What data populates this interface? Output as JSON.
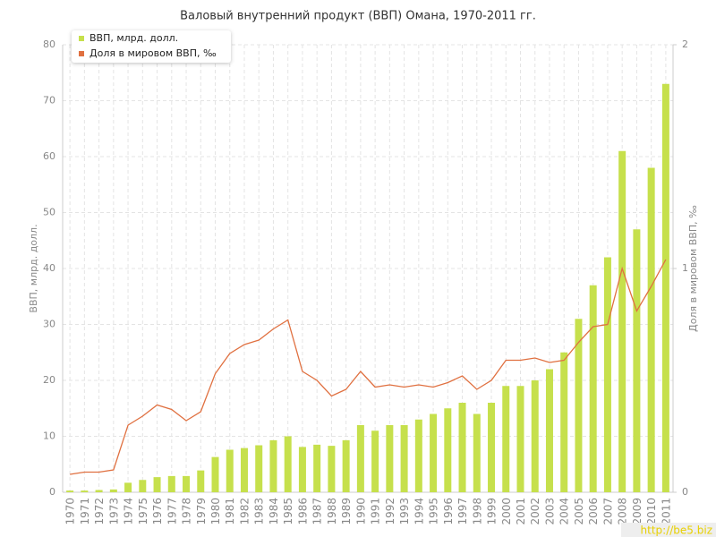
{
  "chart_data": {
    "type": "bar-line",
    "title": "Валовый внутренний продукт (ВВП) Омана, 1970-2011 гг.",
    "ylabel": "ВВП, млрд. долл.",
    "y2label": "Доля в мировом ВВП, ‰",
    "categories": [
      "1970",
      "1971",
      "1972",
      "1973",
      "1974",
      "1975",
      "1976",
      "1977",
      "1978",
      "1979",
      "1980",
      "1981",
      "1982",
      "1983",
      "1984",
      "1985",
      "1986",
      "1987",
      "1988",
      "1989",
      "1990",
      "1991",
      "1992",
      "1993",
      "1994",
      "1995",
      "1996",
      "1997",
      "1998",
      "1999",
      "2000",
      "2001",
      "2002",
      "2003",
      "2004",
      "2005",
      "2006",
      "2007",
      "2008",
      "2009",
      "2010",
      "2011"
    ],
    "series": [
      {
        "name": "ВВП, млрд. долл.",
        "type": "bar",
        "color": "#c6e04c",
        "values": [
          0.3,
          0.3,
          0.4,
          0.5,
          1.7,
          2.2,
          2.7,
          2.9,
          2.9,
          3.9,
          6.3,
          7.6,
          7.9,
          8.4,
          9.3,
          10.0,
          8.1,
          8.5,
          8.3,
          9.3,
          12.0,
          11.0,
          12.0,
          12.0,
          13.0,
          14.0,
          15.0,
          16.0,
          14.0,
          16.0,
          19.0,
          19.0,
          20.0,
          22.0,
          25.0,
          31.0,
          37.0,
          42.0,
          61.0,
          47.0,
          58.0,
          73.0
        ]
      },
      {
        "name": "Доля в мировом ВВП, ‰",
        "type": "line",
        "axis": "y2",
        "color": "#e07040",
        "values": [
          0.08,
          0.09,
          0.09,
          0.1,
          0.3,
          0.34,
          0.39,
          0.37,
          0.32,
          0.36,
          0.53,
          0.62,
          0.66,
          0.68,
          0.73,
          0.77,
          0.54,
          0.5,
          0.43,
          0.46,
          0.54,
          0.47,
          0.48,
          0.47,
          0.48,
          0.47,
          0.49,
          0.52,
          0.46,
          0.5,
          0.59,
          0.59,
          0.6,
          0.58,
          0.59,
          0.67,
          0.74,
          0.75,
          1.0,
          0.81,
          0.92,
          1.04
        ]
      }
    ],
    "ylim": [
      0,
      80
    ],
    "yticks": [
      0,
      10,
      20,
      30,
      40,
      50,
      60,
      70,
      80
    ],
    "y2lim": [
      0,
      2
    ],
    "y2ticks": [
      0,
      1,
      2
    ],
    "grid": true,
    "legend": "top-left",
    "watermark": "http://be5.biz"
  }
}
